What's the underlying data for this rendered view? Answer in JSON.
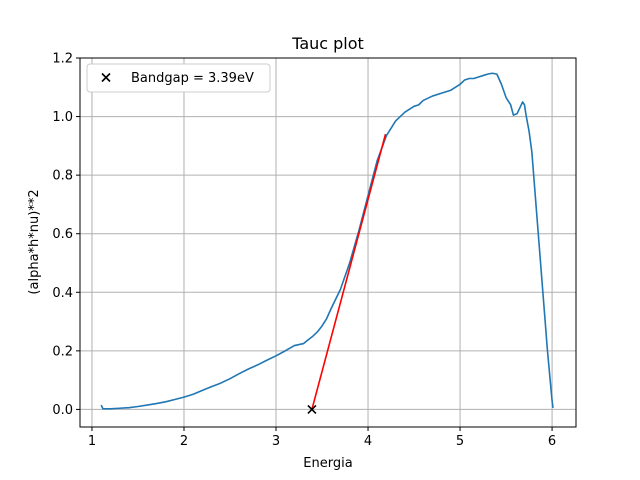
{
  "chart_data": {
    "type": "line",
    "title": "Tauc plot",
    "xlabel": "Energia",
    "ylabel": "(alpha*h*nu)**2",
    "xlim": [
      0.87,
      6.26
    ],
    "ylim": [
      -0.06,
      1.2
    ],
    "grid": true,
    "legend_position": "top-left",
    "x_ticks": [
      1,
      2,
      3,
      4,
      5,
      6
    ],
    "x_tick_labels": [
      "1",
      "2",
      "3",
      "4",
      "5",
      "6"
    ],
    "y_ticks": [
      0.0,
      0.2,
      0.4,
      0.6,
      0.8,
      1.0,
      1.2
    ],
    "y_tick_labels": [
      "0.0",
      "0.2",
      "0.4",
      "0.6",
      "0.8",
      "1.0",
      "1.2"
    ],
    "series": [
      {
        "type": "line",
        "color": "#1f77b4",
        "x": [
          1.1,
          1.12,
          1.2,
          1.3,
          1.4,
          1.5,
          1.6,
          1.7,
          1.8,
          1.9,
          2.0,
          2.1,
          2.2,
          2.3,
          2.4,
          2.5,
          2.6,
          2.7,
          2.8,
          2.9,
          3.0,
          3.1,
          3.2,
          3.3,
          3.35,
          3.4,
          3.45,
          3.5,
          3.55,
          3.6,
          3.7,
          3.8,
          3.9,
          4.0,
          4.1,
          4.2,
          4.3,
          4.4,
          4.5,
          4.55,
          4.6,
          4.7,
          4.8,
          4.9,
          5.0,
          5.05,
          5.1,
          5.15,
          5.2,
          5.25,
          5.3,
          5.35,
          5.4,
          5.45,
          5.5,
          5.55,
          5.58,
          5.62,
          5.65,
          5.68,
          5.7,
          5.72,
          5.75,
          5.78,
          5.8,
          5.85,
          5.9,
          5.95,
          6.0,
          6.01
        ],
        "y": [
          0.015,
          0.002,
          0.002,
          0.004,
          0.006,
          0.01,
          0.015,
          0.02,
          0.026,
          0.034,
          0.042,
          0.052,
          0.065,
          0.078,
          0.09,
          0.105,
          0.122,
          0.138,
          0.152,
          0.168,
          0.183,
          0.2,
          0.218,
          0.225,
          0.238,
          0.25,
          0.265,
          0.285,
          0.31,
          0.345,
          0.41,
          0.5,
          0.61,
          0.73,
          0.85,
          0.935,
          0.985,
          1.015,
          1.035,
          1.04,
          1.055,
          1.07,
          1.08,
          1.09,
          1.11,
          1.125,
          1.13,
          1.13,
          1.135,
          1.14,
          1.145,
          1.148,
          1.145,
          1.11,
          1.065,
          1.04,
          1.005,
          1.01,
          1.03,
          1.05,
          1.04,
          1.0,
          0.95,
          0.88,
          0.8,
          0.6,
          0.4,
          0.2,
          0.03,
          0.005
        ]
      },
      {
        "type": "line",
        "color": "#ff0000",
        "x": [
          3.39,
          4.19
        ],
        "y": [
          0.0,
          0.94
        ]
      }
    ],
    "points": [
      {
        "label": "Bandgap = 3.39eV",
        "x": 3.39,
        "y": 0.0,
        "marker": "x",
        "color": "#000000"
      }
    ]
  }
}
